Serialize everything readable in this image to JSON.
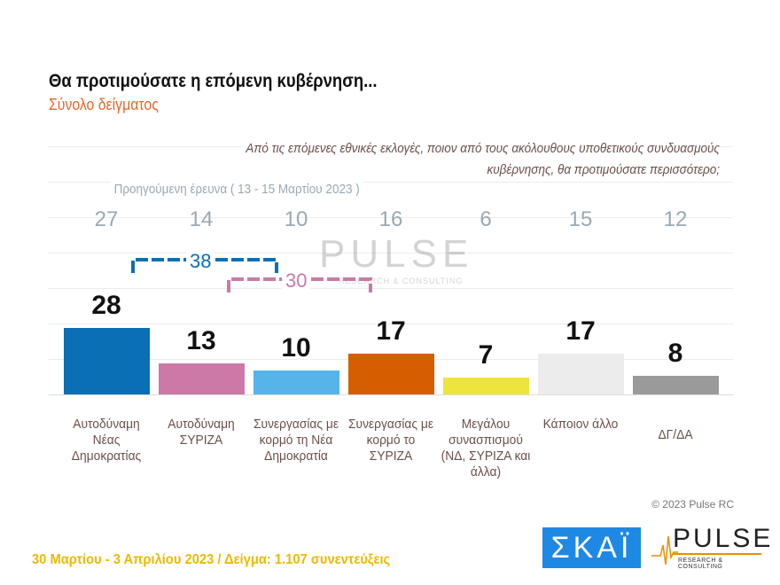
{
  "header": {
    "title": "Θα προτιμούσατε η επόμενη κυβέρνηση...",
    "subtitle": "Σύνολο δείγματος",
    "question": "Από τις επόμενες εθνικές εκλογές, ποιον από τους ακόλουθους υποθετικούς συνδυασμούς κυβέρνησης, θα προτιμούσατε περισσότερο;"
  },
  "chart_data": {
    "type": "bar",
    "categories": [
      "Αυτοδύναμη Νέας Δημοκρατίας",
      "Αυτοδύναμη ΣΥΡΙΖΑ",
      "Συνεργασίας με κορμό τη Νέα Δημοκρατία",
      "Συνεργασίας με κορμό το ΣΥΡΙΖΑ",
      "Μεγάλου συνασπισμού (ΝΔ, ΣΥΡΙΖΑ και άλλα)",
      "Κάποιον άλλο",
      "ΔΓ/ΔΑ"
    ],
    "values": [
      28,
      13,
      10,
      17,
      7,
      17,
      8
    ],
    "value_labels": [
      "28",
      "13",
      "10",
      "17",
      "7",
      "17",
      "8"
    ],
    "colors": [
      "#0a6fb5",
      "#cc79a7",
      "#56b4e9",
      "#d55e00",
      "#ede43c",
      "#ececec",
      "#9a9a9a"
    ],
    "previous_label": "Προηγούμενη έρευνα  ( 13 - 15 Μαρτίου  2023 )",
    "previous_values": [
      "27",
      "14",
      "10",
      "16",
      "6",
      "15",
      "12"
    ],
    "groupings": [
      {
        "label": "38",
        "color": "#0a6fb5"
      },
      {
        "label": "30",
        "color": "#cc79a7"
      }
    ]
  },
  "footer": {
    "copyright": "© 2023 Pulse RC",
    "fieldwork": "30 Μαρτίου - 3  Απριλίου  2023  /  Δείγμα:  1.107 συνεντεύξεις",
    "logo_skai": "ΣΚΑΪ",
    "logo_pulse": "PULSE",
    "logo_pulse_sub": "RESEARCH & CONSULTING"
  }
}
